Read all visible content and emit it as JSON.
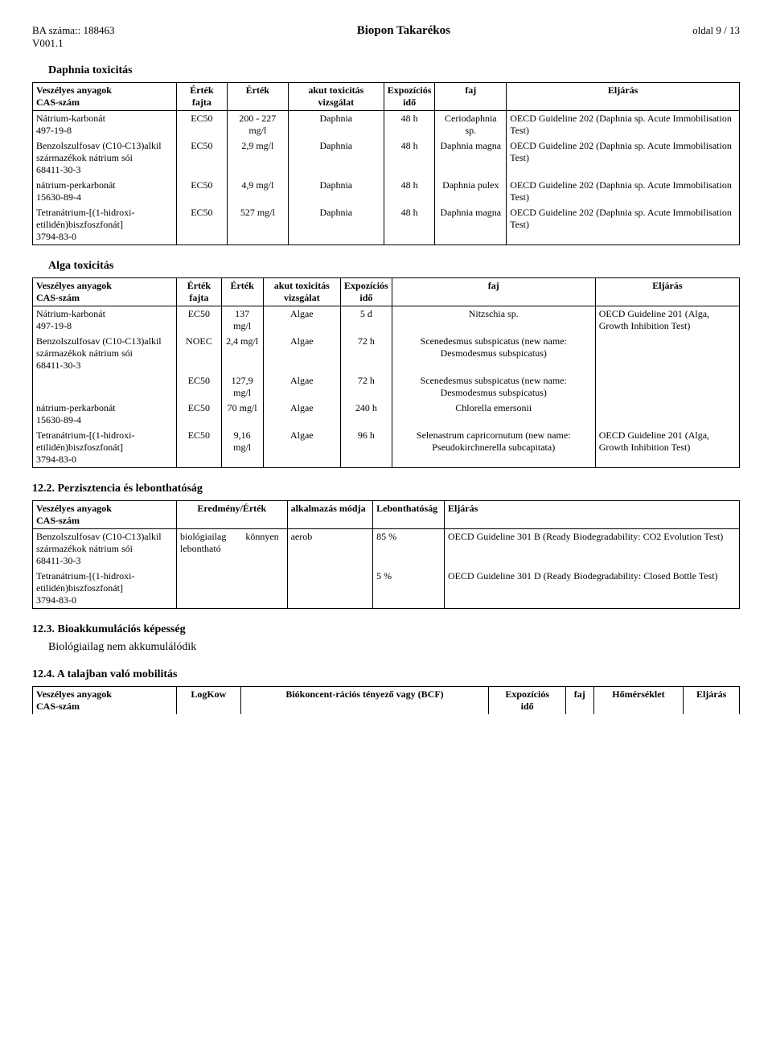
{
  "header": {
    "ba_label": "BA száma:: ",
    "ba_num": "188463",
    "version": "V001.1",
    "title": "Biopon Takarékos",
    "page": "oldal 9 / 13"
  },
  "sections": {
    "daphnia_title": "Daphnia toxicitás",
    "alga_title": "Alga toxicitás",
    "s12_2": "12.2. Perzisztencia és lebonthatóság",
    "s12_3": "12.3. Bioakkumulációs képesség",
    "bio_text": "Biológiailag nem akkumulálódik",
    "s12_4": "12.4. A talajban való mobilitás"
  },
  "th": {
    "substance": "Veszélyes anyagok",
    "cas": "CAS-szám",
    "value_type": "Érték fajta",
    "value": "Érték",
    "acute_test": "akut toxicitás vizsgálat",
    "exposure": "Expozíciós",
    "time_sub": "idő",
    "species": "faj",
    "method": "Eljárás",
    "result": "Eredmény/Érték",
    "app_method": "alkalmazás módja",
    "degradability": "Lebonthatóság",
    "logkow": "LogKow",
    "bcf": "Biókoncent-rációs tényező vagy (BCF)",
    "temp": "Hőmérséklet"
  },
  "daphnia_rows": [
    {
      "substance": "Nátrium-karbonát\n497-19-8",
      "vt": "EC50",
      "val": "200 - 227 mg/l",
      "test": "Daphnia",
      "exp": "48 h",
      "sp": "Ceriodaphnia sp.",
      "meth": "OECD Guideline 202 (Daphnia sp. Acute Immobilisation Test)"
    },
    {
      "substance": "Benzolszulfosav (C10-C13)alkil származékok nátrium sói\n68411-30-3",
      "vt": "EC50",
      "val": "2,9 mg/l",
      "test": "Daphnia",
      "exp": "48 h",
      "sp": "Daphnia magna",
      "meth": "OECD Guideline 202 (Daphnia sp. Acute Immobilisation Test)"
    },
    {
      "substance": "nátrium-perkarbonát\n15630-89-4",
      "vt": "EC50",
      "val": "4,9 mg/l",
      "test": "Daphnia",
      "exp": "48 h",
      "sp": "Daphnia pulex",
      "meth": "OECD Guideline 202 (Daphnia sp. Acute Immobilisation Test)"
    },
    {
      "substance": "Tetranátrium-[(1-hidroxi-etilidén)biszfoszfonát]\n3794-83-0",
      "vt": "EC50",
      "val": "527 mg/l",
      "test": "Daphnia",
      "exp": "48 h",
      "sp": "Daphnia magna",
      "meth": "OECD Guideline 202 (Daphnia sp. Acute Immobilisation Test)"
    }
  ],
  "alga_rows": [
    {
      "substance": "Nátrium-karbonát\n497-19-8",
      "vt": "EC50",
      "val": "137 mg/l",
      "test": "Algae",
      "exp": "5 d",
      "sp": "Nitzschia sp.",
      "meth": "OECD Guideline 201 (Alga, Growth Inhibition Test)"
    },
    {
      "substance": "Benzolszulfosav (C10-C13)alkil származékok nátrium sói\n68411-30-3",
      "vt": "NOEC",
      "val": "2,4 mg/l",
      "test": "Algae",
      "exp": "72 h",
      "sp": "Scenedesmus subspicatus (new name: Desmodesmus subspicatus)",
      "meth": ""
    },
    {
      "substance": "",
      "vt": "EC50",
      "val": "127,9 mg/l",
      "test": "Algae",
      "exp": "72 h",
      "sp": "Scenedesmus subspicatus (new name: Desmodesmus subspicatus)",
      "meth": ""
    },
    {
      "substance": "nátrium-perkarbonát\n15630-89-4",
      "vt": "EC50",
      "val": "70 mg/l",
      "test": "Algae",
      "exp": "240 h",
      "sp": "Chlorella emersonii",
      "meth": ""
    },
    {
      "substance": "Tetranátrium-[(1-hidroxi-etilidén)biszfoszfonát]\n3794-83-0",
      "vt": "EC50",
      "val": "9,16 mg/l",
      "test": "Algae",
      "exp": "96 h",
      "sp": "Selenastrum capricornutum (new name: Pseudokirchnerella subcapitata)",
      "meth": "OECD Guideline 201 (Alga, Growth Inhibition Test)"
    }
  ],
  "persist_rows": [
    {
      "substance": "Benzolszulfosav (C10-C13)alkil származékok nátrium sói\n68411-30-3",
      "res": "biológiailag        könnyen\nlebontható",
      "app": "aerob",
      "deg": "85 %",
      "meth": "OECD Guideline 301 B (Ready Biodegradability: CO2 Evolution Test)"
    },
    {
      "substance": "Tetranátrium-[(1-hidroxi-etilidén)biszfoszfonát]\n3794-83-0",
      "res": "",
      "app": "",
      "deg": "5 %",
      "meth": "OECD Guideline 301 D (Ready Biodegradability: Closed Bottle Test)"
    }
  ]
}
